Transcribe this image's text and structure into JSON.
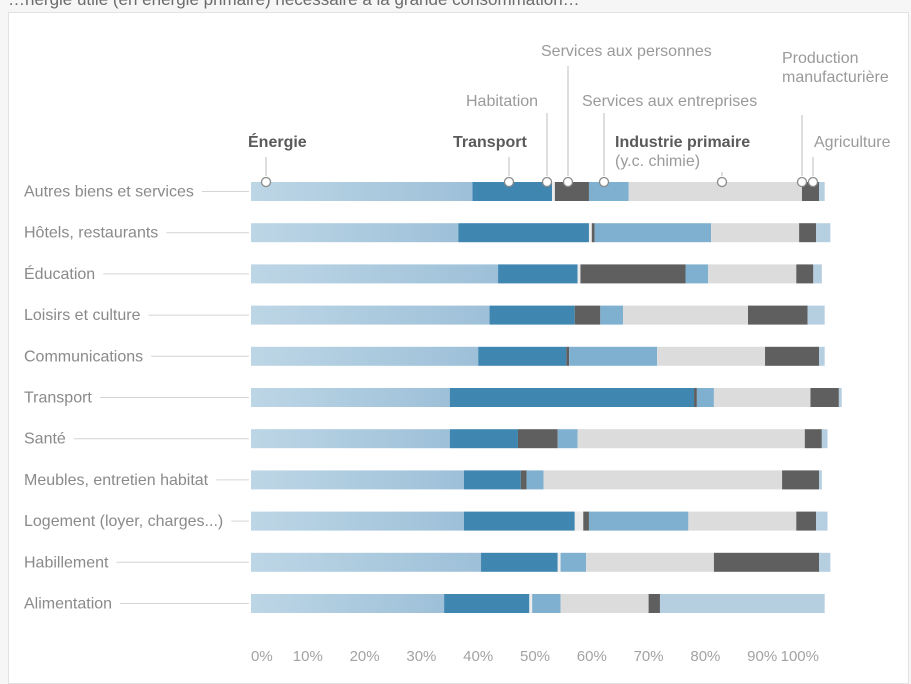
{
  "header_text": "…nergie utile (en énergie primaire) nécessaire à la grande consommation…",
  "chart_data": {
    "type": "bar",
    "stacked": true,
    "orientation": "horizontal",
    "categories": [
      "Autres biens et services",
      "Hôtels, restaurants",
      "Éducation",
      "Loisirs et culture",
      "Communications",
      "Transport",
      "Santé",
      "Meubles, entretien habitat",
      "Logement (loyer, charges...)",
      "Habillement",
      "Alimentation"
    ],
    "series": [
      {
        "name": "Énergie",
        "color": "#b6cfe0",
        "values": [
          39,
          36.5,
          43.5,
          42,
          40,
          35,
          35,
          37.5,
          37.5,
          40.5,
          34
        ]
      },
      {
        "name": "Transport",
        "color": "#3f86b1",
        "values": [
          14,
          23,
          14,
          15,
          15.5,
          43,
          12,
          10,
          19.5,
          13.5,
          15
        ]
      },
      {
        "name": "Habitation",
        "color": "#ececec",
        "values": [
          0.5,
          0.5,
          0.5,
          0,
          0,
          0,
          0,
          0,
          1.5,
          0.5,
          0.5
        ]
      },
      {
        "name": "Services aux personnes",
        "color": "#5f5f5f",
        "values": [
          6,
          0.5,
          18.5,
          4.5,
          0.5,
          0.5,
          7,
          1,
          1,
          0,
          0
        ]
      },
      {
        "name": "Services aux entreprises",
        "color": "#7fb0d0",
        "values": [
          7,
          20.5,
          4,
          4,
          15.5,
          3,
          3.5,
          3,
          17.5,
          4.5,
          5
        ]
      },
      {
        "name": "Industrie primaire (y.c. chimie)",
        "color": "#dcdcdc",
        "values": [
          30.5,
          15.5,
          15.5,
          22,
          19,
          17,
          40,
          42,
          19,
          22.5,
          15.5
        ]
      },
      {
        "name": "Production manufacturière",
        "color": "#5f5f5f",
        "values": [
          3,
          3,
          3,
          10.5,
          9.5,
          5,
          3,
          6.5,
          3.5,
          18.5,
          2
        ]
      },
      {
        "name": "Agriculture",
        "color": "#b6cfe0",
        "values": [
          1,
          2.5,
          1.5,
          3,
          1,
          0.5,
          1,
          0.5,
          2,
          2,
          29
        ]
      }
    ],
    "xlim": [
      0,
      100
    ],
    "x_ticks": [
      "0%",
      "10%",
      "20%",
      "30%",
      "40%",
      "50%",
      "60%",
      "70%",
      "80%",
      "90%",
      "100%"
    ],
    "annotations": [
      {
        "label": "Énergie",
        "sublabel": "",
        "bold": true
      },
      {
        "label": "Transport",
        "sublabel": "",
        "bold": true
      },
      {
        "label": "Habitation",
        "sublabel": "",
        "bold": false
      },
      {
        "label": "Services aux personnes",
        "sublabel": "",
        "bold": false
      },
      {
        "label": "Services aux entreprises",
        "sublabel": "",
        "bold": false
      },
      {
        "label": "Industrie primaire",
        "sublabel": "(y.c. chimie)",
        "bold": true
      },
      {
        "label": "Production",
        "sublabel": "manufacturière",
        "bold": false
      },
      {
        "label": "Agriculture",
        "sublabel": "",
        "bold": false
      }
    ],
    "colors": {
      "energie": "#b6cfe0",
      "transport": "#3f86b1",
      "services_dark": "#5f5f5f",
      "services_entreprises": "#7fb0d0",
      "industrie": "#dcdcdc"
    }
  }
}
